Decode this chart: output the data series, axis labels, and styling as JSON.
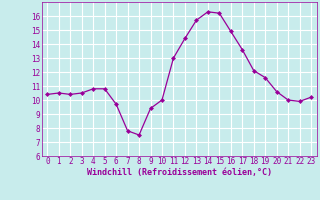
{
  "x": [
    0,
    1,
    2,
    3,
    4,
    5,
    6,
    7,
    8,
    9,
    10,
    11,
    12,
    13,
    14,
    15,
    16,
    17,
    18,
    19,
    20,
    21,
    22,
    23
  ],
  "y": [
    10.4,
    10.5,
    10.4,
    10.5,
    10.8,
    10.8,
    9.7,
    7.8,
    7.5,
    9.4,
    10.0,
    13.0,
    14.4,
    15.7,
    16.3,
    16.2,
    14.9,
    13.6,
    12.1,
    11.6,
    10.6,
    10.0,
    9.9,
    10.2
  ],
  "line_color": "#990099",
  "marker": "D",
  "marker_size": 2,
  "xlim": [
    -0.5,
    23.5
  ],
  "ylim": [
    6,
    17
  ],
  "yticks": [
    6,
    7,
    8,
    9,
    10,
    11,
    12,
    13,
    14,
    15,
    16
  ],
  "xticks": [
    0,
    1,
    2,
    3,
    4,
    5,
    6,
    7,
    8,
    9,
    10,
    11,
    12,
    13,
    14,
    15,
    16,
    17,
    18,
    19,
    20,
    21,
    22,
    23
  ],
  "xlabel": "Windchill (Refroidissement éolien,°C)",
  "background_color": "#c8ecec",
  "grid_color": "#ffffff",
  "label_color": "#990099",
  "tick_fontsize": 5.5,
  "xlabel_fontsize": 6.0
}
